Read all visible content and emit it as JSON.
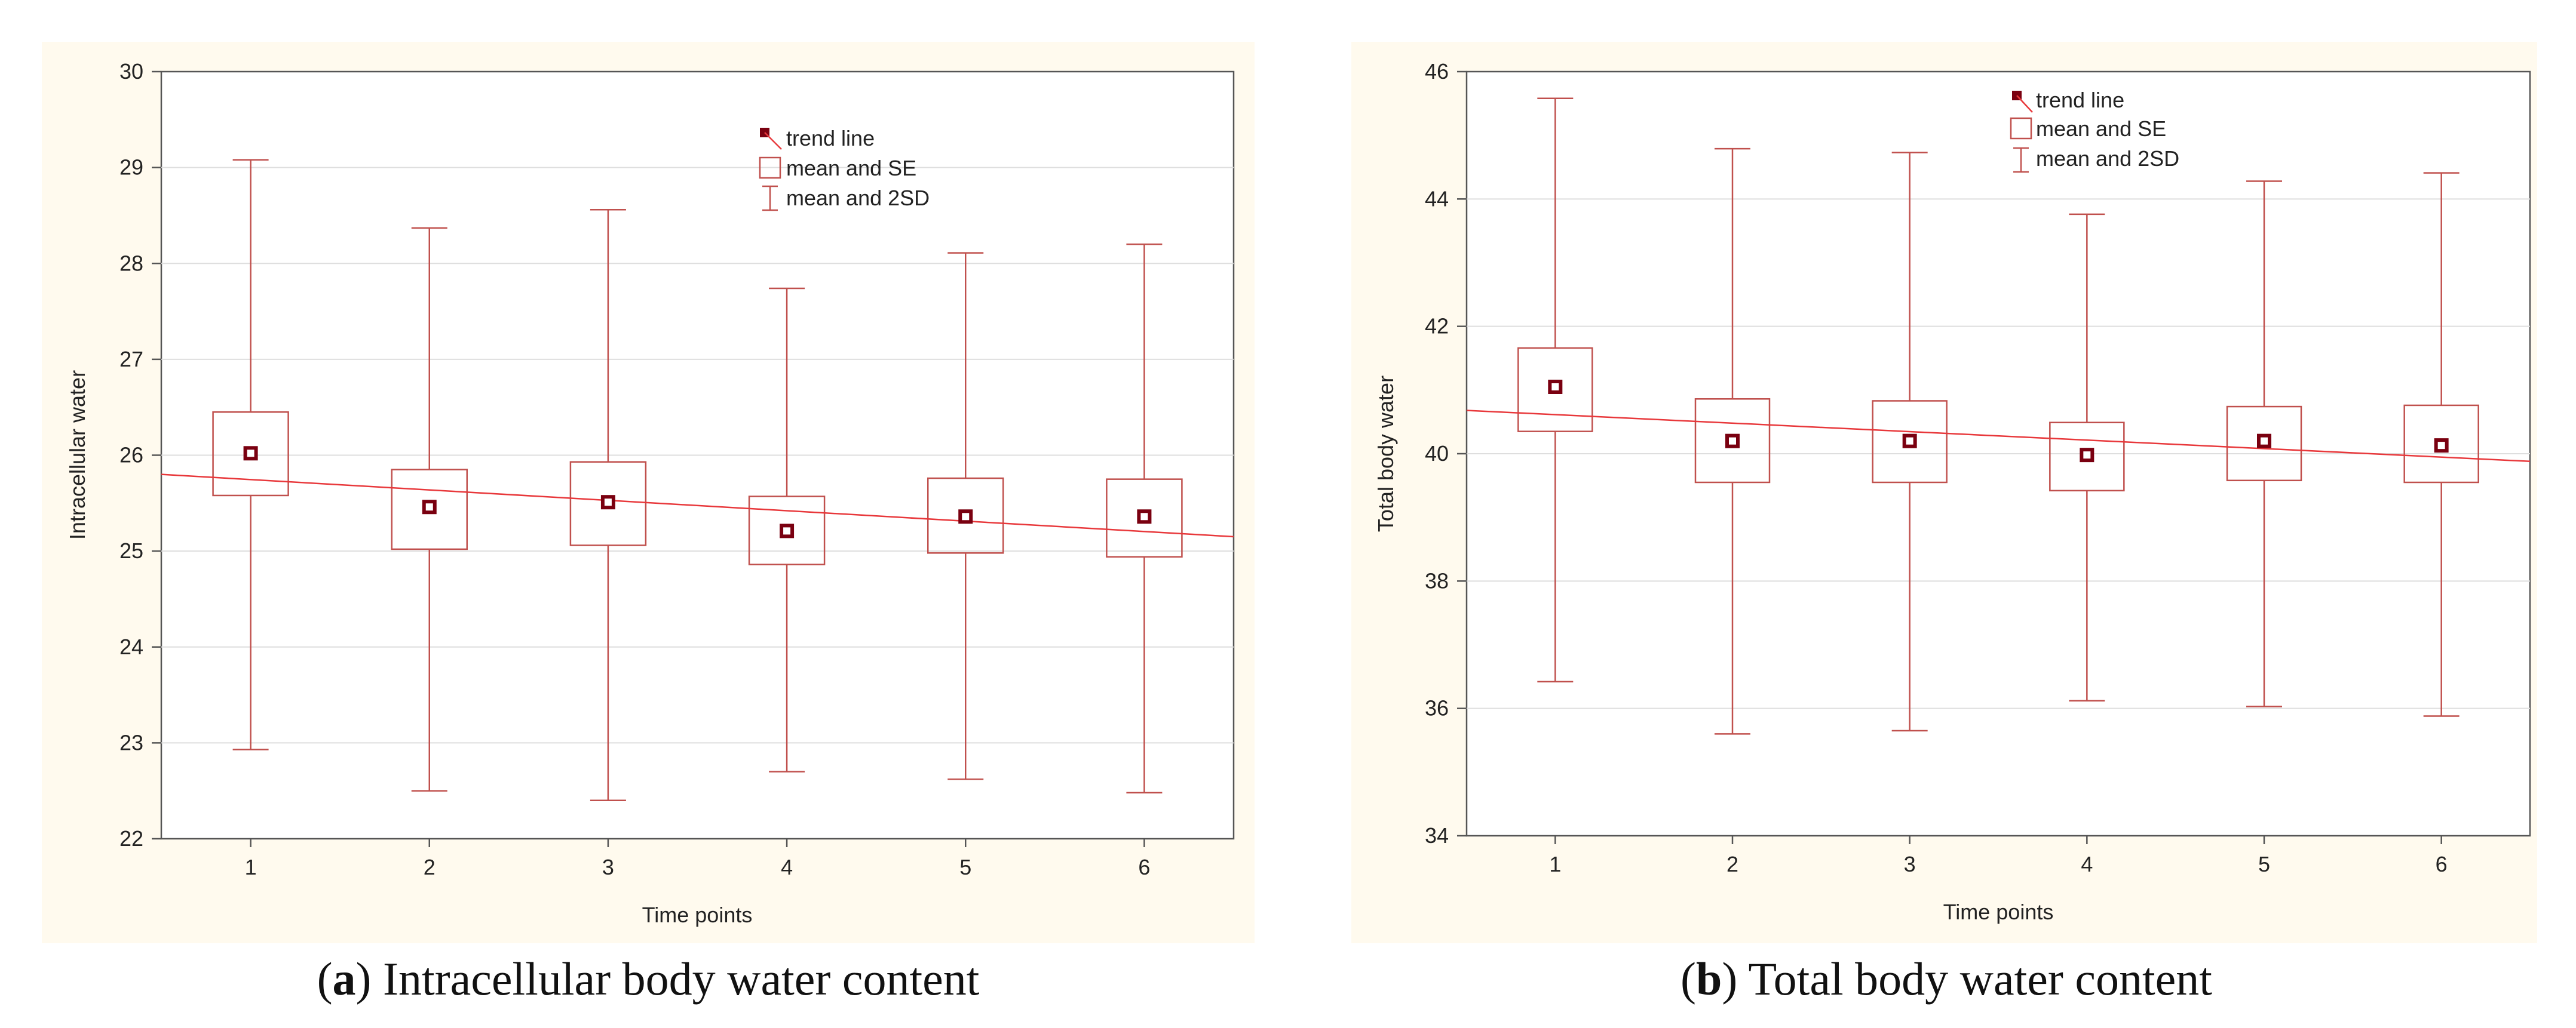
{
  "chart_data": [
    {
      "type": "box",
      "panel": "a",
      "caption_letter": "a",
      "caption_text": "Intracellular body water content",
      "xlabel": "Time points",
      "ylabel": "Intracellular water",
      "categories": [
        "1",
        "2",
        "3",
        "4",
        "5",
        "6"
      ],
      "ylim": [
        22,
        30
      ],
      "yticks": [
        22,
        23,
        24,
        25,
        26,
        27,
        28,
        29,
        30
      ],
      "grid": true,
      "legend": {
        "position": "top-center",
        "entries": [
          "trend line",
          "mean and SE",
          "mean and 2SD"
        ]
      },
      "series": [
        {
          "name": "mean",
          "values": [
            26.02,
            25.46,
            25.51,
            25.21,
            25.36,
            25.36
          ]
        },
        {
          "name": "se_low",
          "values": [
            25.58,
            25.02,
            25.06,
            24.86,
            24.98,
            24.94
          ]
        },
        {
          "name": "se_high",
          "values": [
            26.45,
            25.85,
            25.93,
            25.57,
            25.76,
            25.75
          ]
        },
        {
          "name": "sd2_low",
          "values": [
            22.93,
            22.5,
            22.4,
            22.7,
            22.62,
            22.48
          ]
        },
        {
          "name": "sd2_high",
          "values": [
            29.08,
            28.37,
            28.56,
            27.74,
            28.11,
            28.2
          ]
        }
      ],
      "trend_line": {
        "at_x_0_5": 25.8,
        "at_x_6_5": 25.15
      }
    },
    {
      "type": "box",
      "panel": "b",
      "caption_letter": "b",
      "caption_text": "Total body water content",
      "xlabel": "Time points",
      "ylabel": "Total body water",
      "categories": [
        "1",
        "2",
        "3",
        "4",
        "5",
        "6"
      ],
      "ylim": [
        34,
        46
      ],
      "yticks": [
        34,
        36,
        38,
        40,
        42,
        44,
        46
      ],
      "grid": true,
      "legend": {
        "position": "top-center",
        "entries": [
          "trend line",
          "mean and SE",
          "mean and 2SD"
        ]
      },
      "series": [
        {
          "name": "mean",
          "values": [
            41.05,
            40.2,
            40.2,
            39.98,
            40.2,
            40.13
          ]
        },
        {
          "name": "se_low",
          "values": [
            40.35,
            39.55,
            39.55,
            39.42,
            39.58,
            39.55
          ]
        },
        {
          "name": "se_high",
          "values": [
            41.66,
            40.86,
            40.83,
            40.49,
            40.74,
            40.76
          ]
        },
        {
          "name": "sd2_low",
          "values": [
            36.42,
            35.6,
            35.65,
            36.12,
            36.03,
            35.88
          ]
        },
        {
          "name": "sd2_high",
          "values": [
            45.58,
            44.79,
            44.73,
            43.76,
            44.28,
            44.41
          ]
        }
      ],
      "trend_line": {
        "at_x_0_5": 40.68,
        "at_x_6_5": 39.88
      }
    }
  ]
}
